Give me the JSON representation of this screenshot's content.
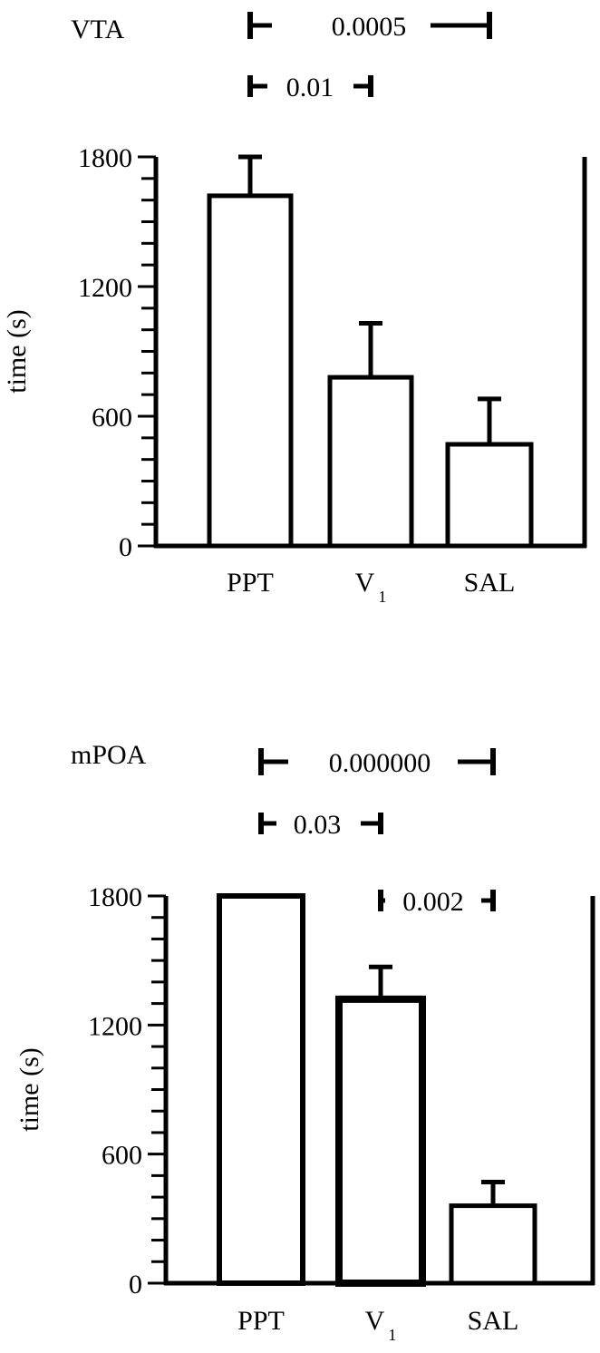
{
  "chart_data": [
    {
      "type": "bar",
      "title": "VTA",
      "ylabel": "time (s)",
      "ylim": [
        0,
        1800
      ],
      "yticks": [
        0,
        600,
        1200,
        1800
      ],
      "categories": [
        "PPT",
        "V",
        "SAL"
      ],
      "category_subscripts": [
        "",
        "1",
        ""
      ],
      "values": [
        1620,
        780,
        470
      ],
      "errors": [
        180,
        250,
        210
      ],
      "significance": [
        {
          "from": 0,
          "to": 2,
          "label": "0.0005"
        },
        {
          "from": 0,
          "to": 1,
          "label": "0.01"
        }
      ],
      "grid": false
    },
    {
      "type": "bar",
      "title": "mPOA",
      "ylabel": "time (s)",
      "ylim": [
        0,
        1800
      ],
      "yticks": [
        0,
        600,
        1200,
        1800
      ],
      "categories": [
        "PPT",
        "V",
        "SAL"
      ],
      "category_subscripts": [
        "",
        "1",
        ""
      ],
      "values": [
        1800,
        1320,
        360
      ],
      "errors": [
        0,
        150,
        110
      ],
      "significance": [
        {
          "from": 0,
          "to": 2,
          "label": "0.000000"
        },
        {
          "from": 0,
          "to": 1,
          "label": "0.03"
        },
        {
          "from": 1,
          "to": 2,
          "label": "0.002"
        }
      ],
      "grid": false
    }
  ]
}
